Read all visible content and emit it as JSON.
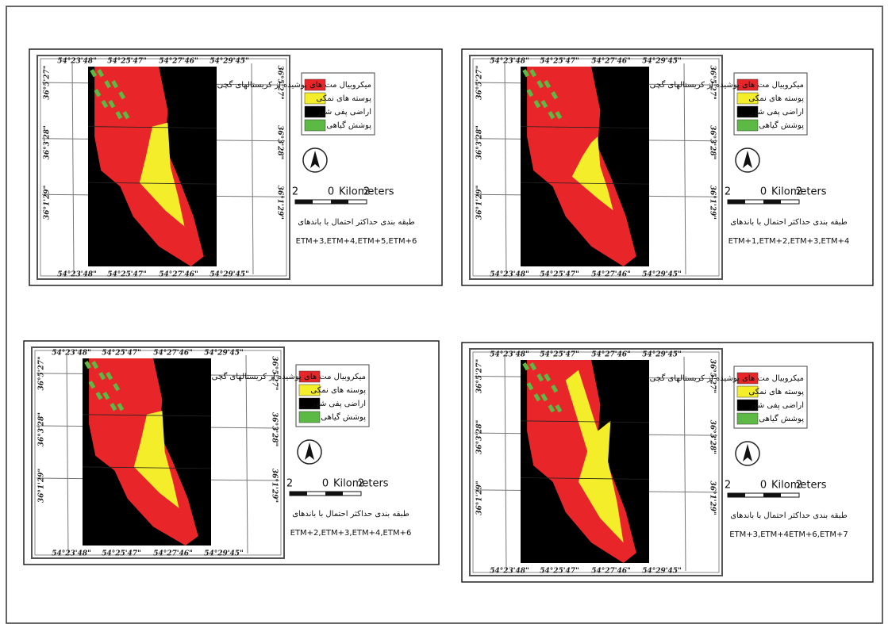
{
  "panels": [
    {
      "top_coords": [
        "54°23'48\"",
        "54°25'47\"",
        "54°27'46\"",
        "54°29'45\""
      ],
      "bottom_coords": [
        "54°23'48\"",
        "54°25'47\"",
        "54°27'46\"",
        "54°29'45\""
      ],
      "left_coords": [
        "36°5'27\"",
        "36°3'28\"",
        "36°1'29\""
      ],
      "right_coords": [
        "36°5'27\"",
        "36°3'28\"",
        "36°1'29\""
      ],
      "legend": [
        {
          "label": "میکروبیال مت های پوشیده از کریستالهای گچی",
          "color": "#e8262a"
        },
        {
          "label": "پوسته های نمکی",
          "color": "#f4ee2a"
        },
        {
          "label": "اراضی پفی شور",
          "color": "#000000"
        },
        {
          "label": "پوشش گیاهی",
          "color": "#5cb944"
        }
      ],
      "scale": [
        "2",
        "0",
        "2",
        "Kilometers"
      ],
      "caption": [
        "طبقه بندی حداکثر احتمال با باندهای",
        "ETM+3,ETM+4,ETM+5,ETM+6"
      ]
    },
    {
      "top_coords": [
        "54°23'48\"",
        "54°25'47\"",
        "54°27'46\"",
        "54°29'45\""
      ],
      "bottom_coords": [
        "54°23'48\"",
        "54°25'47\"",
        "54°27'46\"",
        "54°29'45\""
      ],
      "left_coords": [
        "36°5'27\"",
        "36°3'28\"",
        "36°1'29\""
      ],
      "right_coords": [
        "36°5'27\"",
        "36°3'28\"",
        "36°1'29\""
      ],
      "legend": [
        {
          "label": "میکروبیال مت های پوشیده از کریستالهای گچی",
          "color": "#e8262a"
        },
        {
          "label": "پوسته های نمکی",
          "color": "#f4ee2a"
        },
        {
          "label": "اراضی پفی شور",
          "color": "#000000"
        },
        {
          "label": "پوشش گیاهی",
          "color": "#5cb944"
        }
      ],
      "scale": [
        "2",
        "0",
        "2",
        "Kilometers"
      ],
      "caption": [
        "طبقه بندی حداکثر احتمال با باندهای",
        "ETM+1,ETM+2,ETM+3,ETM+4"
      ]
    },
    {
      "top_coords": [
        "54°23'48\"",
        "54°25'47\"",
        "54°27'46\"",
        "54°29'45\""
      ],
      "bottom_coords": [
        "54°23'48\"",
        "54°25'47\"",
        "54°27'46\"",
        "54°29'45\""
      ],
      "left_coords": [
        "36°5'27\"",
        "36°3'28\"",
        "36°1'29\""
      ],
      "right_coords": [
        "36°5'27\"",
        "36°3'28\"",
        "36°1'29\""
      ],
      "legend": [
        {
          "label": "میکروبیال مت های پوشیده از کریستالهای گچی",
          "color": "#e8262a"
        },
        {
          "label": "پوسته های نمکی",
          "color": "#f4ee2a"
        },
        {
          "label": "اراضی پفی شور",
          "color": "#000000"
        },
        {
          "label": "پوشش گیاهی",
          "color": "#5cb944"
        }
      ],
      "scale": [
        "2",
        "0",
        "2",
        "Kilometers"
      ],
      "caption": [
        "طبقه بندی حداکثر احتمال با باندهای",
        "ETM+2,ETM+3,ETM+4,ETM+6"
      ]
    },
    {
      "top_coords": [
        "54°23'48\"",
        "54°25'47\"",
        "54°27'46\"",
        "54°29'45\""
      ],
      "bottom_coords": [
        "54°23'48\"",
        "54°25'47\"",
        "54°27'46\"",
        "54°29'45\""
      ],
      "left_coords": [
        "36°5'27\"",
        "36°3'28\"",
        "36°1'29\""
      ],
      "right_coords": [
        "36°5'27\"",
        "36°3'28\"",
        "36°1'29\""
      ],
      "legend": [
        {
          "label": "میکروبیال مت های پوشیده از کریستالهای گچی",
          "color": "#e8262a"
        },
        {
          "label": "پوسته های نمکی",
          "color": "#f4ee2a"
        },
        {
          "label": "اراضی پفی شور",
          "color": "#000000"
        },
        {
          "label": "پوشش گیاهی",
          "color": "#5cb944"
        }
      ],
      "scale": [
        "2",
        "0",
        "2",
        "Kilometers"
      ],
      "caption": [
        "طبقه بندی حداکثر احتمال با باندهای",
        "ETM+3,ETM+4ETM+6,ETM+7"
      ]
    }
  ]
}
